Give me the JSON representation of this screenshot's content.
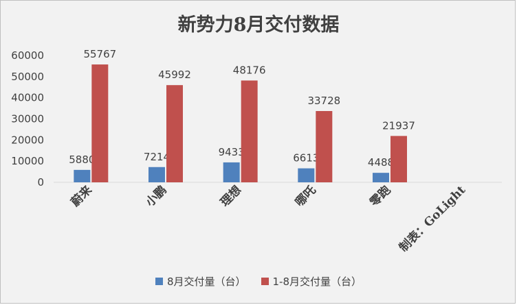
{
  "chart_data": {
    "type": "bar",
    "title": "新势力8月交付数据",
    "categories": [
      "蔚来",
      "小鹏",
      "理想",
      "哪吒",
      "零跑",
      "制表：GoLight"
    ],
    "series": [
      {
        "name": "8月交付量（台）",
        "color": "#4f81bd",
        "values": [
          5880,
          7214,
          9433,
          6613,
          4488,
          null
        ]
      },
      {
        "name": "1-8月交付量（台）",
        "color": "#c0504d",
        "values": [
          55767,
          45992,
          48176,
          33728,
          21937,
          null
        ]
      }
    ],
    "ylim": [
      0,
      60000
    ],
    "yticks": [
      0,
      10000,
      20000,
      30000,
      40000,
      50000,
      60000
    ],
    "legend_position": "bottom",
    "grid": false
  }
}
